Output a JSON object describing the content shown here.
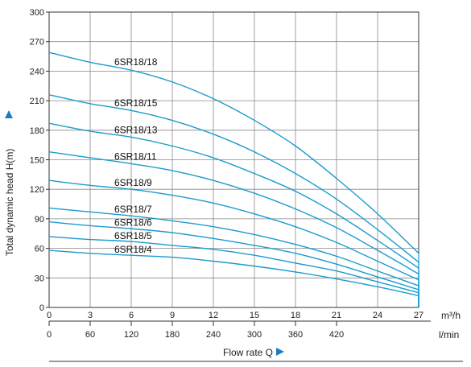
{
  "chart_data": {
    "type": "line",
    "ylabel": "Total dynamic head H(m)",
    "xlabel": "Flow rate  Q",
    "x_unit_primary": "m³/h",
    "x_unit_secondary": "l/min",
    "xlim": [
      0,
      27
    ],
    "ylim": [
      0,
      300
    ],
    "x_ticks": [
      0,
      3,
      6,
      9,
      12,
      15,
      18,
      21,
      24,
      27
    ],
    "x_ticks_secondary": [
      0,
      60,
      120,
      180,
      240,
      300,
      360,
      420
    ],
    "y_ticks": [
      0,
      30,
      60,
      90,
      120,
      150,
      180,
      210,
      240,
      270,
      300
    ],
    "grid": true,
    "accent_color": "#1a9bd0",
    "x": [
      0,
      3,
      6,
      9,
      12,
      15,
      18,
      21,
      24,
      27
    ],
    "series": [
      {
        "name": "6SR18/18",
        "values": [
          259,
          249,
          241,
          229,
          212,
          190,
          164,
          131,
          95,
          55
        ]
      },
      {
        "name": "6SR18/15",
        "values": [
          216,
          207,
          200,
          190,
          176,
          158,
          136,
          110,
          79,
          46
        ]
      },
      {
        "name": "6SR18/13",
        "values": [
          187,
          179,
          173,
          164,
          152,
          136,
          118,
          95,
          68,
          40
        ]
      },
      {
        "name": "6SR18/11",
        "values": [
          158,
          152,
          146,
          139,
          129,
          116,
          100,
          81,
          58,
          34
        ]
      },
      {
        "name": "6SR18/9",
        "values": [
          129,
          124,
          120,
          114,
          106,
          95,
          82,
          66,
          47,
          28
        ]
      },
      {
        "name": "6SR18/7",
        "values": [
          101,
          97,
          93,
          88,
          82,
          74,
          64,
          52,
          37,
          22
        ]
      },
      {
        "name": "6SR18/6",
        "values": [
          87,
          83,
          80,
          76,
          70,
          63,
          55,
          44,
          31,
          18
        ]
      },
      {
        "name": "6SR18/5",
        "values": [
          72,
          69,
          67,
          63,
          59,
          53,
          45,
          37,
          26,
          15
        ]
      },
      {
        "name": "6SR18/4",
        "values": [
          58,
          55,
          53,
          51,
          47,
          42,
          36,
          29,
          21,
          12
        ]
      }
    ]
  }
}
